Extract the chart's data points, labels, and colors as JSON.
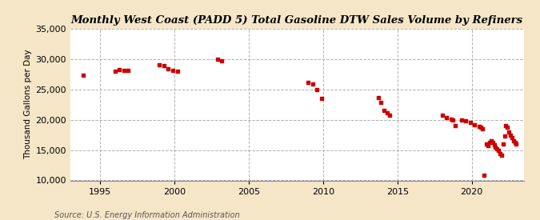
{
  "title": "Monthly West Coast (PADD 5) Total Gasoline DTW Sales Volume by Refiners",
  "ylabel": "Thousand Gallons per Day",
  "source": "Source: U.S. Energy Information Administration",
  "fig_background_color": "#F5E6C8",
  "plot_background_color": "#FFFFFF",
  "marker_color": "#CC0000",
  "grid_color": "#AAAAAA",
  "ylim": [
    10000,
    35000
  ],
  "xlim": [
    1993.0,
    2023.5
  ],
  "yticks": [
    10000,
    15000,
    20000,
    25000,
    30000,
    35000
  ],
  "xticks": [
    1995,
    2000,
    2005,
    2010,
    2015,
    2020
  ],
  "data": [
    [
      1993.9,
      27300
    ],
    [
      1996.0,
      28000
    ],
    [
      1996.3,
      28200
    ],
    [
      1996.6,
      28100
    ],
    [
      1996.9,
      28100
    ],
    [
      1999.0,
      29100
    ],
    [
      1999.3,
      28900
    ],
    [
      1999.6,
      28400
    ],
    [
      1999.9,
      28100
    ],
    [
      2000.2,
      28000
    ],
    [
      2002.9,
      29900
    ],
    [
      2003.2,
      29700
    ],
    [
      2009.0,
      26100
    ],
    [
      2009.3,
      25900
    ],
    [
      2009.6,
      25000
    ],
    [
      2009.9,
      23500
    ],
    [
      2013.7,
      23600
    ],
    [
      2013.9,
      22800
    ],
    [
      2014.1,
      21500
    ],
    [
      2014.3,
      21100
    ],
    [
      2014.5,
      20800
    ],
    [
      2018.0,
      20700
    ],
    [
      2018.3,
      20400
    ],
    [
      2018.6,
      20100
    ],
    [
      2018.7,
      19900
    ],
    [
      2018.9,
      19000
    ],
    [
      2019.3,
      20000
    ],
    [
      2019.6,
      19800
    ],
    [
      2019.9,
      19500
    ],
    [
      2020.2,
      19200
    ],
    [
      2020.5,
      18900
    ],
    [
      2020.6,
      18700
    ],
    [
      2020.7,
      18500
    ],
    [
      2020.8,
      10800
    ],
    [
      2021.0,
      16000
    ],
    [
      2021.1,
      15700
    ],
    [
      2021.2,
      16300
    ],
    [
      2021.3,
      16500
    ],
    [
      2021.4,
      16200
    ],
    [
      2021.5,
      15900
    ],
    [
      2021.6,
      15500
    ],
    [
      2021.7,
      15200
    ],
    [
      2021.8,
      14900
    ],
    [
      2021.9,
      14400
    ],
    [
      2022.0,
      14200
    ],
    [
      2022.1,
      16000
    ],
    [
      2022.2,
      17300
    ],
    [
      2022.3,
      19000
    ],
    [
      2022.4,
      18700
    ],
    [
      2022.5,
      18000
    ],
    [
      2022.6,
      17500
    ],
    [
      2022.7,
      17000
    ],
    [
      2022.8,
      16500
    ],
    [
      2022.9,
      16200
    ],
    [
      2023.0,
      16000
    ]
  ]
}
